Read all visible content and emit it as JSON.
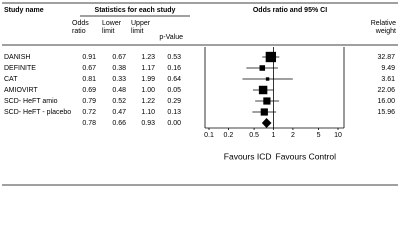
{
  "chart_data": {
    "type": "forest",
    "headers": {
      "study": "Study name",
      "stats": "Statistics for each study",
      "plot": "Odds ratio and 95% CI"
    },
    "studies": [
      "DANISH",
      "DEFINITE",
      "CAT",
      "AMIOVIRT",
      "SCD- HeFT amio",
      "SCD- HeFT - placebo",
      null
    ],
    "series": [
      {
        "name": "Odds ratio",
        "values": [
          0.91,
          0.67,
          0.81,
          0.69,
          0.79,
          0.72,
          0.78
        ]
      },
      {
        "name": "Lower limit",
        "values": [
          0.67,
          0.38,
          0.33,
          0.48,
          0.52,
          0.47,
          0.66
        ]
      },
      {
        "name": "Upper limit",
        "values": [
          1.23,
          1.17,
          1.99,
          1,
          1.22,
          1.1,
          0.93
        ],
        "value_labels": [
          "1.23",
          "1.17",
          "1.99",
          "1.00",
          "1.22",
          "1.10",
          "0.93"
        ]
      },
      {
        "name": "p-Value",
        "values": [
          0.53,
          0.16,
          0.64,
          0.05,
          0.29,
          0.13,
          0
        ],
        "value_labels": [
          "0.53",
          "0.16",
          "0.64",
          "0.05",
          "0.29",
          "0.13",
          "0.00"
        ]
      },
      {
        "name": "Relative weight",
        "values": [
          32.87,
          9.49,
          3.61,
          22.06,
          16,
          15.96,
          null
        ],
        "value_labels": [
          "32.87",
          "9.49",
          "3.61",
          "22.06",
          "16.00",
          "15.96",
          null
        ]
      }
    ],
    "log_scale": true,
    "xlim": [
      0.1,
      10
    ],
    "xticks": [
      0.1,
      0.2,
      0.5,
      1,
      2,
      5,
      10
    ],
    "xlabel_left": "Favours ICD",
    "xlabel_right": "Favours Control",
    "color": "#000000"
  }
}
